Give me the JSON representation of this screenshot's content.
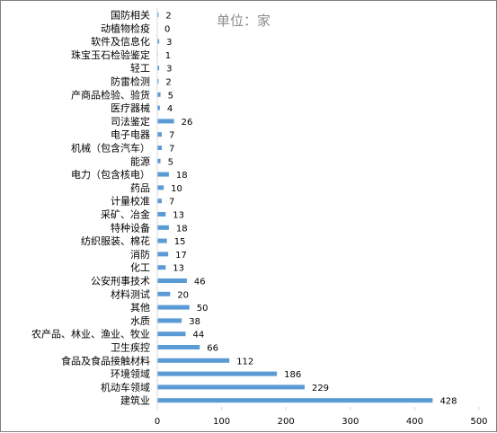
{
  "chart_data": {
    "type": "bar",
    "orientation": "horizontal",
    "title": "",
    "annotation": "单位：家",
    "categories": [
      "国防相关",
      "动植物检疫",
      "软件及信息化",
      "珠宝玉石检验鉴定",
      "轻工",
      "防雷检测",
      "产商品检验、验货",
      "医疗器械",
      "司法鉴定",
      "电子电器",
      "机械（包含汽车）",
      "能源",
      "电力（包含核电）",
      "药品",
      "计量校准",
      "采矿、冶金",
      "特种设备",
      "纺织服装、棉花",
      "消防",
      "化工",
      "公安刑事技术",
      "材料测试",
      "其他",
      "水质",
      "农产品、林业、渔业、牧业",
      "卫生疾控",
      "食品及食品接触材料",
      "环境领域",
      "机动车领域",
      "建筑业"
    ],
    "values": [
      2,
      0,
      3,
      1,
      3,
      2,
      5,
      4,
      26,
      7,
      7,
      5,
      18,
      10,
      7,
      13,
      18,
      15,
      17,
      13,
      46,
      20,
      50,
      38,
      44,
      66,
      112,
      186,
      229,
      428
    ],
    "value_labels": [
      "2",
      "0",
      "3",
      "1",
      "3",
      "2",
      "5",
      "4",
      "26",
      "7",
      "7",
      "5",
      "18",
      "10",
      "7",
      "13",
      "18",
      "15",
      "17",
      "13",
      "46",
      "20",
      "50",
      "38",
      "44",
      "66",
      "112",
      "186",
      "229",
      "428"
    ],
    "xlim": [
      0,
      500
    ],
    "xticks": [
      0,
      100,
      200,
      300,
      400,
      500
    ],
    "xtick_labels": [
      "0",
      "100",
      "200",
      "300",
      "400",
      "500"
    ],
    "bar_color": "#5b9bd5",
    "grid": false,
    "legend": "none"
  }
}
